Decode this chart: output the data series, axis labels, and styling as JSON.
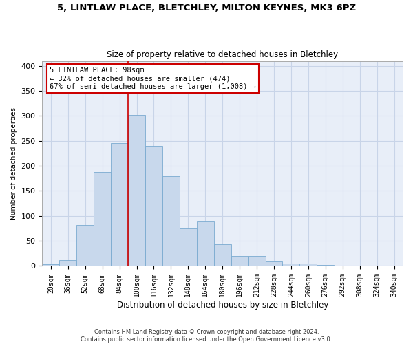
{
  "title_line1": "5, LINTLAW PLACE, BLETCHLEY, MILTON KEYNES, MK3 6PZ",
  "title_line2": "Size of property relative to detached houses in Bletchley",
  "xlabel": "Distribution of detached houses by size in Bletchley",
  "ylabel": "Number of detached properties",
  "bar_color": "#c8d8ec",
  "bar_edge_color": "#7aaad0",
  "grid_color": "#c8d4e8",
  "bg_color": "#e8eef8",
  "categories": [
    "20sqm",
    "36sqm",
    "52sqm",
    "68sqm",
    "84sqm",
    "100sqm",
    "116sqm",
    "132sqm",
    "148sqm",
    "164sqm",
    "180sqm",
    "196sqm",
    "212sqm",
    "228sqm",
    "244sqm",
    "260sqm",
    "276sqm",
    "292sqm",
    "308sqm",
    "324sqm",
    "340sqm"
  ],
  "values": [
    3,
    12,
    82,
    188,
    246,
    302,
    240,
    180,
    75,
    90,
    43,
    20,
    20,
    9,
    5,
    5,
    2,
    1,
    1,
    0,
    1
  ],
  "vline_x": 4.5,
  "vline_color": "#cc0000",
  "annotation_text": "5 LINTLAW PLACE: 98sqm\n← 32% of detached houses are smaller (474)\n67% of semi-detached houses are larger (1,008) →",
  "annotation_box_color": "#ffffff",
  "annotation_box_edge": "#cc0000",
  "footer_line1": "Contains HM Land Registry data © Crown copyright and database right 2024.",
  "footer_line2": "Contains public sector information licensed under the Open Government Licence v3.0.",
  "ylim": [
    0,
    410
  ],
  "yticks": [
    0,
    50,
    100,
    150,
    200,
    250,
    300,
    350,
    400
  ]
}
